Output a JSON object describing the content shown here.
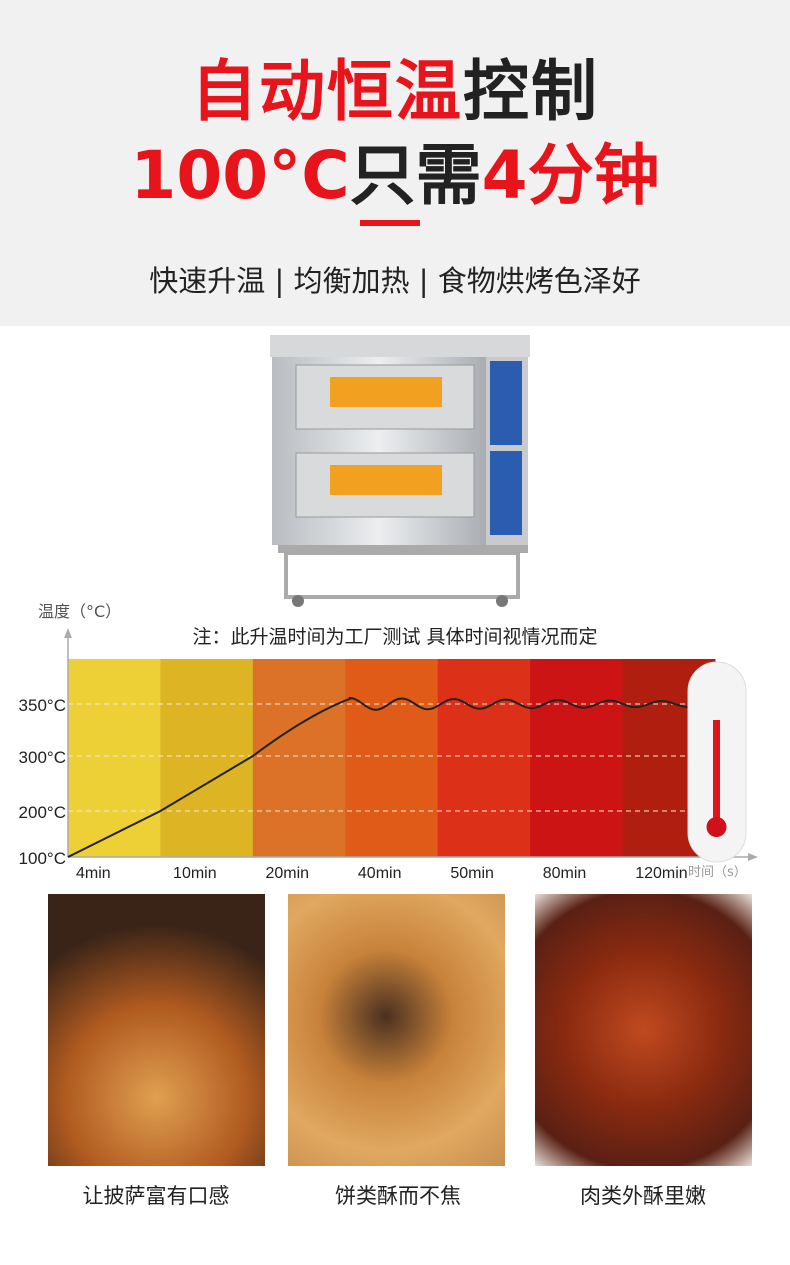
{
  "header": {
    "title_red": "自动恒温",
    "title_dark": "控制",
    "line2_red1": "100°C",
    "line2_dark": "只需",
    "line2_red2": "4分钟",
    "subtitle": "快速升温 | 均衡加热 | 食物烘烤色泽好"
  },
  "note": "注：此升温时间为工厂测试  具体时间视情况而定",
  "colors": {
    "accent": "#e8141c",
    "bands": [
      "#ecd035",
      "#dcb424",
      "#dc7228",
      "#e05a18",
      "#dc3018",
      "#cc1414",
      "#b01e10"
    ]
  },
  "chart_data": {
    "type": "line",
    "ylabel": "温度（°C）",
    "xlabel": "时间（s）",
    "categories": [
      "4min",
      "10min",
      "20min",
      "40min",
      "50min",
      "80min",
      "120min"
    ],
    "yticks": [
      "100°C",
      "200°C",
      "300°C",
      "350°C"
    ],
    "ytick_values": [
      100,
      200,
      300,
      350
    ],
    "series": [
      {
        "x": [
          "start",
          "10min",
          "20min",
          "40min",
          "50min",
          "80min",
          "120min",
          "end"
        ],
        "values": [
          100,
          200,
          300,
          355,
          350,
          350,
          350,
          350
        ]
      }
    ],
    "grid": true
  },
  "foods": [
    {
      "label": "让披萨富有口感"
    },
    {
      "label": "饼类酥而不焦"
    },
    {
      "label": "肉类外酥里嫩"
    }
  ]
}
